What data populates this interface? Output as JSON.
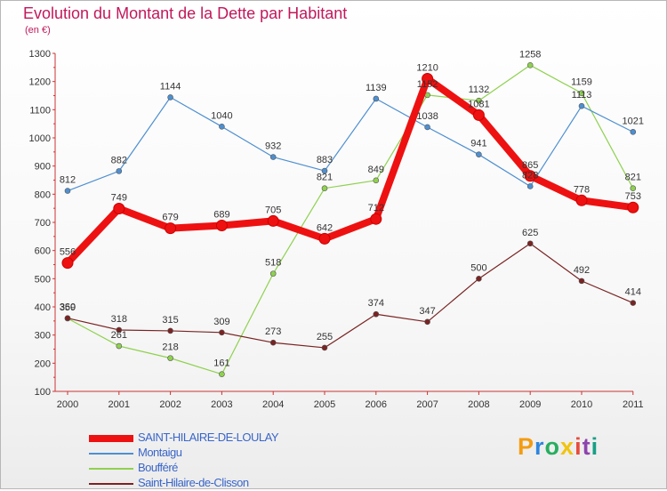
{
  "title": "Evolution du Montant de la Dette par Habitant",
  "subtitle": "(en €)",
  "logo": {
    "text": "Proxiti",
    "colors": [
      "#f39c12",
      "#2e86de",
      "#27ae60",
      "#f1c40f",
      "#e74c3c",
      "#8e44ad",
      "#16a085"
    ]
  },
  "chart_data": {
    "type": "line",
    "x": [
      "2000",
      "2001",
      "2002",
      "2003",
      "2004",
      "2005",
      "2006",
      "2007",
      "2008",
      "2009",
      "2010",
      "2011"
    ],
    "ylim": [
      100,
      1300
    ],
    "yticks": [
      "100",
      "200",
      "300",
      "400",
      "500",
      "600",
      "700",
      "800",
      "900",
      "1000",
      "1100",
      "1200",
      "1300"
    ],
    "grid": false,
    "legend_position": "bottom-left",
    "series": [
      {
        "name": "SAINT-HILAIRE-DE-LOULAY",
        "color": "#ee1111",
        "values": [
          556,
          749,
          679,
          689,
          705,
          642,
          712,
          1210,
          1081,
          865,
          778,
          753
        ],
        "labels": [
          "556",
          "749",
          "679",
          "689",
          "705",
          "642",
          "712",
          "1210",
          "1081",
          "865",
          "778",
          "753"
        ]
      },
      {
        "name": "Montaigu",
        "color": "#4d8fd1",
        "values": [
          812,
          882,
          1144,
          1040,
          932,
          883,
          1139,
          1038,
          941,
          828,
          1113,
          1021
        ],
        "labels": [
          "812",
          "882",
          "1144",
          "1040",
          "932",
          "883",
          "1139",
          "1038",
          "941",
          "828",
          "1113",
          "1021"
        ]
      },
      {
        "name": "Boufféré",
        "color": "#8fd14f",
        "values": [
          359,
          261,
          218,
          161,
          518,
          821,
          849,
          1152,
          1132,
          1258,
          1159,
          821
        ],
        "labels": [
          "359",
          "261",
          "218",
          "161",
          "518",
          "821",
          "849",
          "1152",
          "1132",
          "1258",
          "1159",
          "821"
        ]
      },
      {
        "name": "Saint-Hilaire-de-Clisson",
        "color": "#7a2323",
        "values": [
          360,
          318,
          315,
          309,
          273,
          255,
          374,
          347,
          500,
          625,
          492,
          414
        ],
        "labels": [
          "360",
          "318",
          "315",
          "309",
          "273",
          "255",
          "374",
          "347",
          "500",
          "625",
          "492",
          "414"
        ]
      }
    ]
  }
}
